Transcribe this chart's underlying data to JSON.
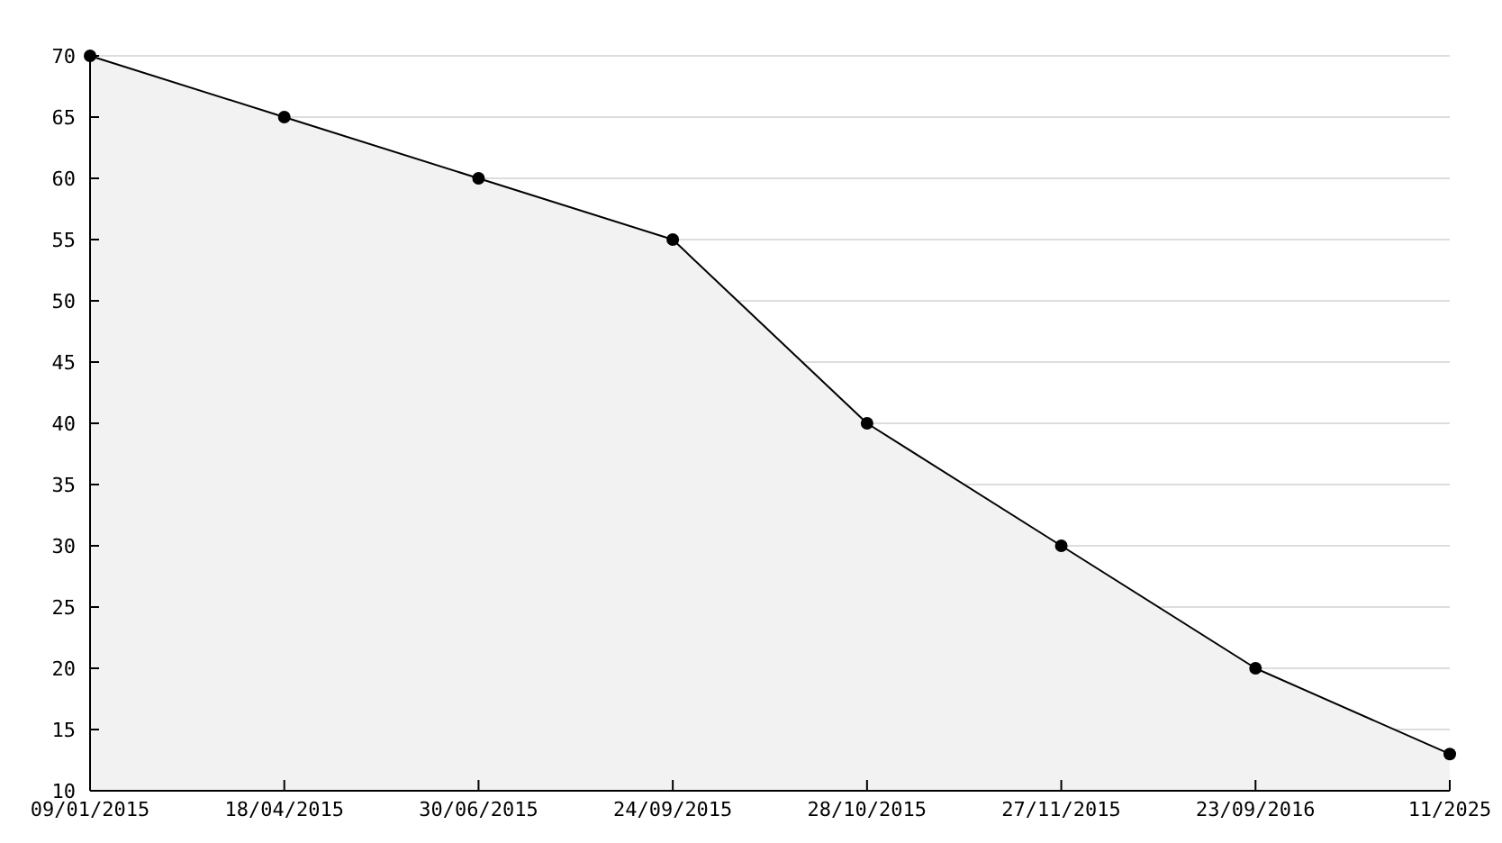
{
  "chart_data": {
    "type": "area",
    "categories": [
      "09/01/2015",
      "18/04/2015",
      "30/06/2015",
      "24/09/2015",
      "28/10/2015",
      "27/11/2015",
      "23/09/2016",
      "11/2025"
    ],
    "series": [
      {
        "color": "#000000",
        "values": [
          70,
          65,
          60,
          55,
          40,
          30,
          20,
          13
        ]
      }
    ],
    "ylim": [
      10,
      70
    ],
    "yticks": [
      10,
      15,
      20,
      25,
      30,
      35,
      40,
      45,
      50,
      55,
      60,
      65,
      70
    ],
    "grid": "y",
    "marker": "circle",
    "line_style": "solid"
  }
}
